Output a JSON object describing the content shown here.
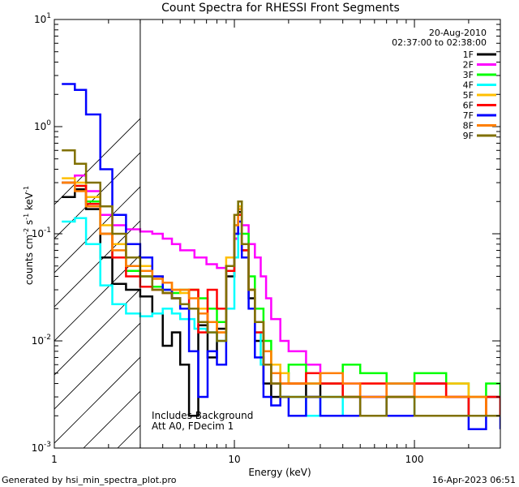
{
  "chart_data": {
    "type": "line",
    "title": "Count Spectra for RHESSI Front Segments",
    "xlabel": "Energy (keV)",
    "ylabel": "counts cm",
    "ylabel_sup1": "-2",
    "ylabel_mid": " s",
    "ylabel_sup2": "-1",
    "ylabel_end": " keV",
    "ylabel_sup3": "-1",
    "xscale": "log",
    "yscale": "log",
    "xlim": [
      1,
      300
    ],
    "ylim": [
      0.001,
      10
    ],
    "x_ticks": [
      {
        "value": 1,
        "label": "1"
      },
      {
        "value": 10,
        "label": "10"
      },
      {
        "value": 100,
        "label": "100"
      }
    ],
    "y_ticks": [
      {
        "value": 0.001,
        "base": "10",
        "exp": "-3"
      },
      {
        "value": 0.01,
        "base": "10",
        "exp": "-2"
      },
      {
        "value": 0.1,
        "base": "10",
        "exp": "-1"
      },
      {
        "value": 1,
        "base": "10",
        "exp": "0"
      },
      {
        "value": 10,
        "base": "10",
        "exp": "1"
      }
    ],
    "hatched_region_x": [
      1,
      3
    ],
    "date": "20-Aug-2010",
    "time_range": "02:37:00 to 02:38:00",
    "annotation_line1": "Includes Background",
    "annotation_line2": "Att A0, FDecim 1",
    "legend_position": "top-right",
    "series": [
      {
        "name": "1F",
        "color": "#000000",
        "x": [
          1.1,
          1.3,
          1.5,
          1.8,
          2.1,
          2.5,
          3.0,
          3.5,
          4.0,
          4.5,
          5.0,
          5.6,
          6.3,
          7.1,
          8.0,
          9.0,
          10.0,
          10.5,
          11.0,
          12.0,
          13.0,
          14.5,
          16.0,
          18.0,
          20.0,
          25.0,
          30.0,
          40.0,
          50.0,
          70.0,
          100.0,
          150.0,
          200.0,
          250.0,
          300.0
        ],
        "y": [
          0.22,
          0.26,
          0.17,
          0.06,
          0.034,
          0.03,
          0.026,
          0.018,
          0.009,
          0.012,
          0.006,
          0.002,
          0.014,
          0.007,
          0.013,
          0.04,
          0.09,
          0.16,
          0.07,
          0.025,
          0.01,
          0.004,
          0.003,
          0.005,
          0.004,
          0.003,
          0.004,
          0.003,
          0.002,
          0.003,
          0.004,
          0.003,
          0.002,
          0.003,
          0.002
        ]
      },
      {
        "name": "2F",
        "color": "#ff00ff",
        "x": [
          1.1,
          1.3,
          1.5,
          1.8,
          2.1,
          2.5,
          3.0,
          3.5,
          4.0,
          4.5,
          5.0,
          6.0,
          7.0,
          8.0,
          9.0,
          10.0,
          10.5,
          11.0,
          12.0,
          13.0,
          14.0,
          15.0,
          16.0,
          18.0,
          20.0,
          25.0,
          30.0,
          40.0,
          50.0,
          70.0,
          100.0,
          150.0,
          200.0,
          250.0,
          300.0
        ],
        "y": [
          0.3,
          0.35,
          0.25,
          0.15,
          0.12,
          0.11,
          0.105,
          0.1,
          0.09,
          0.08,
          0.07,
          0.06,
          0.052,
          0.048,
          0.05,
          0.09,
          0.18,
          0.12,
          0.08,
          0.06,
          0.04,
          0.025,
          0.016,
          0.01,
          0.008,
          0.006,
          0.005,
          0.004,
          0.003,
          0.004,
          0.004,
          0.003,
          0.003,
          0.002,
          0.002
        ]
      },
      {
        "name": "3F",
        "color": "#00ff00",
        "x": [
          1.1,
          1.3,
          1.5,
          1.8,
          2.1,
          2.5,
          3.0,
          3.5,
          4.0,
          4.5,
          5.0,
          5.6,
          6.3,
          7.1,
          8.0,
          9.0,
          10.0,
          10.5,
          11.0,
          12.0,
          13.0,
          14.5,
          16.0,
          18.0,
          20.0,
          25.0,
          30.0,
          40.0,
          50.0,
          70.0,
          100.0,
          150.0,
          200.0,
          250.0,
          300.0
        ],
        "y": [
          0.3,
          0.28,
          0.2,
          0.1,
          0.06,
          0.045,
          0.04,
          0.032,
          0.03,
          0.028,
          0.03,
          0.03,
          0.025,
          0.02,
          0.015,
          0.05,
          0.12,
          0.2,
          0.1,
          0.04,
          0.02,
          0.01,
          0.006,
          0.005,
          0.006,
          0.004,
          0.005,
          0.006,
          0.005,
          0.004,
          0.005,
          0.004,
          0.003,
          0.004,
          0.003
        ]
      },
      {
        "name": "4F",
        "color": "#00ffff",
        "x": [
          1.1,
          1.3,
          1.5,
          1.8,
          2.1,
          2.5,
          3.0,
          3.5,
          4.0,
          4.5,
          5.0,
          6.0,
          7.0,
          8.0,
          9.0,
          10.0,
          10.5,
          11.0,
          12.0,
          13.0,
          14.0,
          16.0,
          18.0,
          20.0,
          25.0,
          30.0,
          40.0,
          50.0,
          70.0,
          100.0,
          150.0,
          200.0,
          250.0,
          300.0
        ],
        "y": [
          0.13,
          0.14,
          0.08,
          0.033,
          0.022,
          0.018,
          0.017,
          0.018,
          0.02,
          0.018,
          0.016,
          0.013,
          0.012,
          0.01,
          0.02,
          0.06,
          0.1,
          0.08,
          0.03,
          0.012,
          0.006,
          0.004,
          0.003,
          0.003,
          0.002,
          0.003,
          0.002,
          0.002,
          0.003,
          0.002,
          0.002,
          0.002,
          0.002,
          0.002
        ]
      },
      {
        "name": "5F",
        "color": "#ffbf00",
        "x": [
          1.1,
          1.3,
          1.5,
          1.8,
          2.1,
          2.5,
          3.0,
          3.5,
          4.0,
          4.5,
          5.0,
          5.6,
          6.3,
          7.1,
          8.0,
          9.0,
          10.0,
          10.5,
          11.0,
          12.0,
          13.0,
          14.5,
          16.0,
          18.0,
          20.0,
          25.0,
          30.0,
          40.0,
          50.0,
          70.0,
          100.0,
          150.0,
          200.0,
          250.0,
          300.0
        ],
        "y": [
          0.33,
          0.3,
          0.22,
          0.12,
          0.08,
          0.06,
          0.05,
          0.04,
          0.035,
          0.03,
          0.028,
          0.03,
          0.02,
          0.015,
          0.012,
          0.06,
          0.15,
          0.18,
          0.08,
          0.03,
          0.015,
          0.008,
          0.006,
          0.005,
          0.004,
          0.005,
          0.004,
          0.003,
          0.004,
          0.003,
          0.003,
          0.004,
          0.003,
          0.002,
          0.002
        ]
      },
      {
        "name": "6F",
        "color": "#ff0000",
        "x": [
          1.1,
          1.3,
          1.5,
          1.8,
          2.1,
          2.5,
          3.0,
          3.5,
          4.0,
          4.5,
          5.0,
          5.6,
          6.3,
          7.1,
          8.0,
          9.0,
          10.0,
          10.5,
          11.0,
          12.0,
          13.0,
          14.5,
          16.0,
          18.0,
          20.0,
          25.0,
          30.0,
          40.0,
          50.0,
          70.0,
          100.0,
          150.0,
          200.0,
          250.0,
          300.0
        ],
        "y": [
          0.3,
          0.28,
          0.19,
          0.1,
          0.06,
          0.04,
          0.032,
          0.03,
          0.028,
          0.025,
          0.02,
          0.03,
          0.012,
          0.03,
          0.02,
          0.045,
          0.1,
          0.15,
          0.07,
          0.03,
          0.012,
          0.006,
          0.004,
          0.004,
          0.004,
          0.005,
          0.004,
          0.003,
          0.004,
          0.003,
          0.004,
          0.003,
          0.002,
          0.003,
          0.002
        ]
      },
      {
        "name": "7F",
        "color": "#0000ff",
        "x": [
          1.1,
          1.3,
          1.5,
          1.8,
          2.1,
          2.5,
          3.0,
          3.5,
          4.0,
          4.5,
          5.0,
          5.6,
          6.3,
          7.1,
          8.0,
          9.0,
          10.0,
          10.5,
          11.0,
          12.0,
          13.0,
          14.5,
          16.0,
          18.0,
          20.0,
          25.0,
          30.0,
          40.0,
          50.0,
          70.0,
          100.0,
          150.0,
          200.0,
          250.0,
          300.0
        ],
        "y": [
          2.5,
          2.2,
          1.3,
          0.4,
          0.15,
          0.08,
          0.06,
          0.04,
          0.03,
          0.025,
          0.02,
          0.008,
          0.003,
          0.008,
          0.006,
          0.05,
          0.1,
          0.13,
          0.06,
          0.02,
          0.007,
          0.003,
          0.0025,
          0.003,
          0.002,
          0.003,
          0.002,
          0.002,
          0.003,
          0.002,
          0.002,
          0.002,
          0.0015,
          0.002,
          0.0015
        ]
      },
      {
        "name": "8F",
        "color": "#ff7f00",
        "x": [
          1.1,
          1.3,
          1.5,
          1.8,
          2.1,
          2.5,
          3.0,
          3.5,
          4.0,
          4.5,
          5.0,
          5.6,
          6.3,
          7.1,
          8.0,
          9.0,
          10.0,
          10.5,
          11.0,
          12.0,
          13.0,
          14.5,
          16.0,
          18.0,
          20.0,
          25.0,
          30.0,
          40.0,
          50.0,
          70.0,
          100.0,
          150.0,
          200.0,
          250.0,
          300.0
        ],
        "y": [
          0.3,
          0.25,
          0.18,
          0.1,
          0.07,
          0.05,
          0.045,
          0.038,
          0.035,
          0.03,
          0.03,
          0.025,
          0.018,
          0.015,
          0.012,
          0.05,
          0.12,
          0.17,
          0.08,
          0.03,
          0.015,
          0.008,
          0.005,
          0.004,
          0.004,
          0.004,
          0.005,
          0.004,
          0.003,
          0.004,
          0.003,
          0.003,
          0.003,
          0.002,
          0.002
        ]
      },
      {
        "name": "9F",
        "color": "#807000",
        "x": [
          1.1,
          1.3,
          1.5,
          1.8,
          2.1,
          2.5,
          3.0,
          3.5,
          4.0,
          4.5,
          5.0,
          5.6,
          6.3,
          7.1,
          8.0,
          9.0,
          10.0,
          10.5,
          11.0,
          12.0,
          13.0,
          14.5,
          16.0,
          18.0,
          20.0,
          25.0,
          30.0,
          40.0,
          50.0,
          70.0,
          100.0,
          150.0,
          200.0,
          250.0,
          300.0
        ],
        "y": [
          0.6,
          0.45,
          0.3,
          0.18,
          0.1,
          0.06,
          0.04,
          0.03,
          0.028,
          0.025,
          0.022,
          0.02,
          0.015,
          0.012,
          0.01,
          0.05,
          0.15,
          0.2,
          0.08,
          0.03,
          0.015,
          0.006,
          0.004,
          0.003,
          0.003,
          0.003,
          0.003,
          0.003,
          0.002,
          0.003,
          0.002,
          0.002,
          0.002,
          0.002,
          0.002
        ]
      }
    ]
  },
  "footer": {
    "generated_by": "Generated by hsi_min_spectra_plot.pro",
    "timestamp": "16-Apr-2023 06:51"
  }
}
